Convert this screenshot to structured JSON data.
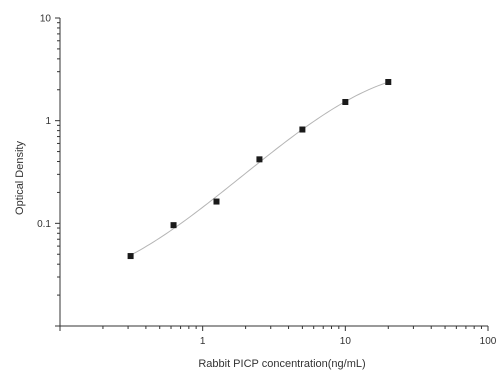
{
  "chart_data": {
    "type": "scatter",
    "title": "",
    "xlabel": "Rabbit PICP concentration(ng/mL)",
    "ylabel": "Optical Density",
    "x_scale": "log",
    "y_scale": "log",
    "xlim": [
      0.1,
      100
    ],
    "ylim": [
      0.01,
      10
    ],
    "x_tick_labels": [
      "1",
      "10",
      "100"
    ],
    "y_tick_labels": [
      "10",
      "1",
      "0.1"
    ],
    "grid": false,
    "legend": "none",
    "points": [
      {
        "x": 0.3125,
        "y": 0.048
      },
      {
        "x": 0.625,
        "y": 0.096
      },
      {
        "x": 1.25,
        "y": 0.163
      },
      {
        "x": 2.5,
        "y": 0.42
      },
      {
        "x": 5,
        "y": 0.82
      },
      {
        "x": 10,
        "y": 1.52
      },
      {
        "x": 20,
        "y": 2.38
      }
    ],
    "fit_curve": true,
    "colors": {
      "marker": "#1a1a1a",
      "curve": "#b5b5b5",
      "axis": "#333333"
    }
  }
}
